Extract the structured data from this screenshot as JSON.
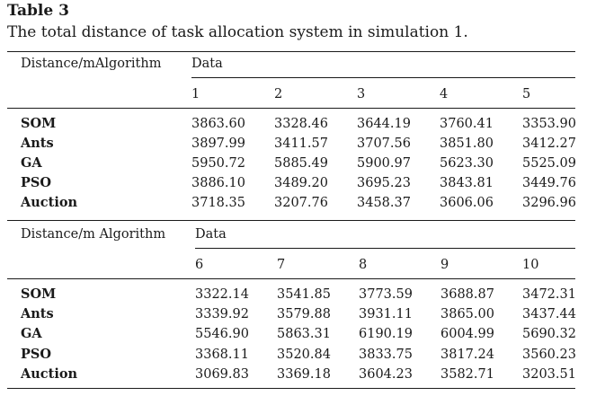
{
  "table_label": "Table 3",
  "caption": "The total distance of task allocation system in simulation 1.",
  "part1": {
    "stub_header": "Distance/mAlgorithm",
    "group_header": "Data",
    "columns": [
      "1",
      "2",
      "3",
      "4",
      "5"
    ],
    "rows": [
      {
        "name": "SOM",
        "values": [
          "3863.60",
          "3328.46",
          "3644.19",
          "3760.41",
          "3353.90"
        ]
      },
      {
        "name": "Ants",
        "values": [
          "3897.99",
          "3411.57",
          "3707.56",
          "3851.80",
          "3412.27"
        ]
      },
      {
        "name": "GA",
        "values": [
          "5950.72",
          "5885.49",
          "5900.97",
          "5623.30",
          "5525.09"
        ]
      },
      {
        "name": "PSO",
        "values": [
          "3886.10",
          "3489.20",
          "3695.23",
          "3843.81",
          "3449.76"
        ]
      },
      {
        "name": "Auction",
        "values": [
          "3718.35",
          "3207.76",
          "3458.37",
          "3606.06",
          "3296.96"
        ]
      }
    ]
  },
  "part2": {
    "stub_header": "Distance/m Algorithm",
    "group_header": "Data",
    "columns": [
      "6",
      "7",
      "8",
      "9",
      "10"
    ],
    "rows": [
      {
        "name": "SOM",
        "values": [
          "3322.14",
          "3541.85",
          "3773.59",
          "3688.87",
          "3472.31"
        ]
      },
      {
        "name": "Ants",
        "values": [
          "3339.92",
          "3579.88",
          "3931.11",
          "3865.00",
          "3437.44"
        ]
      },
      {
        "name": "GA",
        "values": [
          "5546.90",
          "5863.31",
          "6190.19",
          "6004.99",
          "5690.32"
        ]
      },
      {
        "name": "PSO",
        "values": [
          "3368.11",
          "3520.84",
          "3833.75",
          "3817.24",
          "3560.23"
        ]
      },
      {
        "name": "Auction",
        "values": [
          "3069.83",
          "3369.18",
          "3604.23",
          "3582.71",
          "3203.51"
        ]
      }
    ]
  }
}
